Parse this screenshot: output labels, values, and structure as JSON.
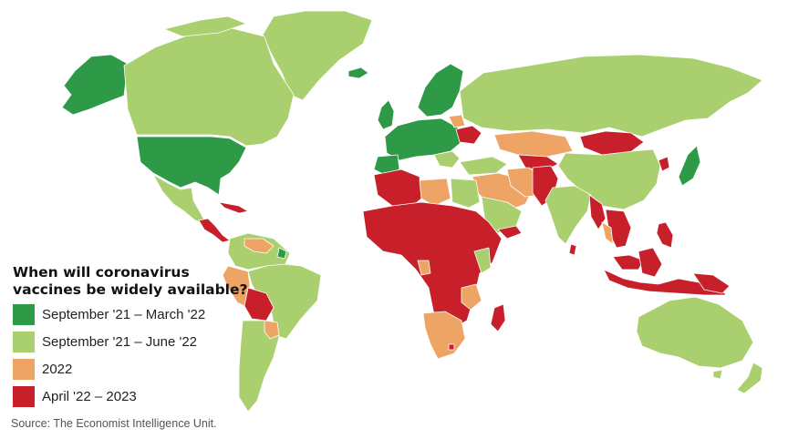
{
  "legend": {
    "title_line1": "When will coronavirus",
    "title_line2": "vaccines be widely available?",
    "items": [
      {
        "label": "September '21 – March '22",
        "color": "#2e9a47"
      },
      {
        "label": "September '21 – June '22",
        "color": "#a9cf6e"
      },
      {
        "label": "2022",
        "color": "#eea464"
      },
      {
        "label": "April '22 – 2023",
        "color": "#c8202a"
      }
    ]
  },
  "source": "Source: The Economist Intelligence Unit.",
  "colors": {
    "dark_green": "#2e9a47",
    "light_green": "#a9cf6e",
    "orange": "#eea464",
    "red": "#c8202a",
    "border": "#ffffff"
  }
}
